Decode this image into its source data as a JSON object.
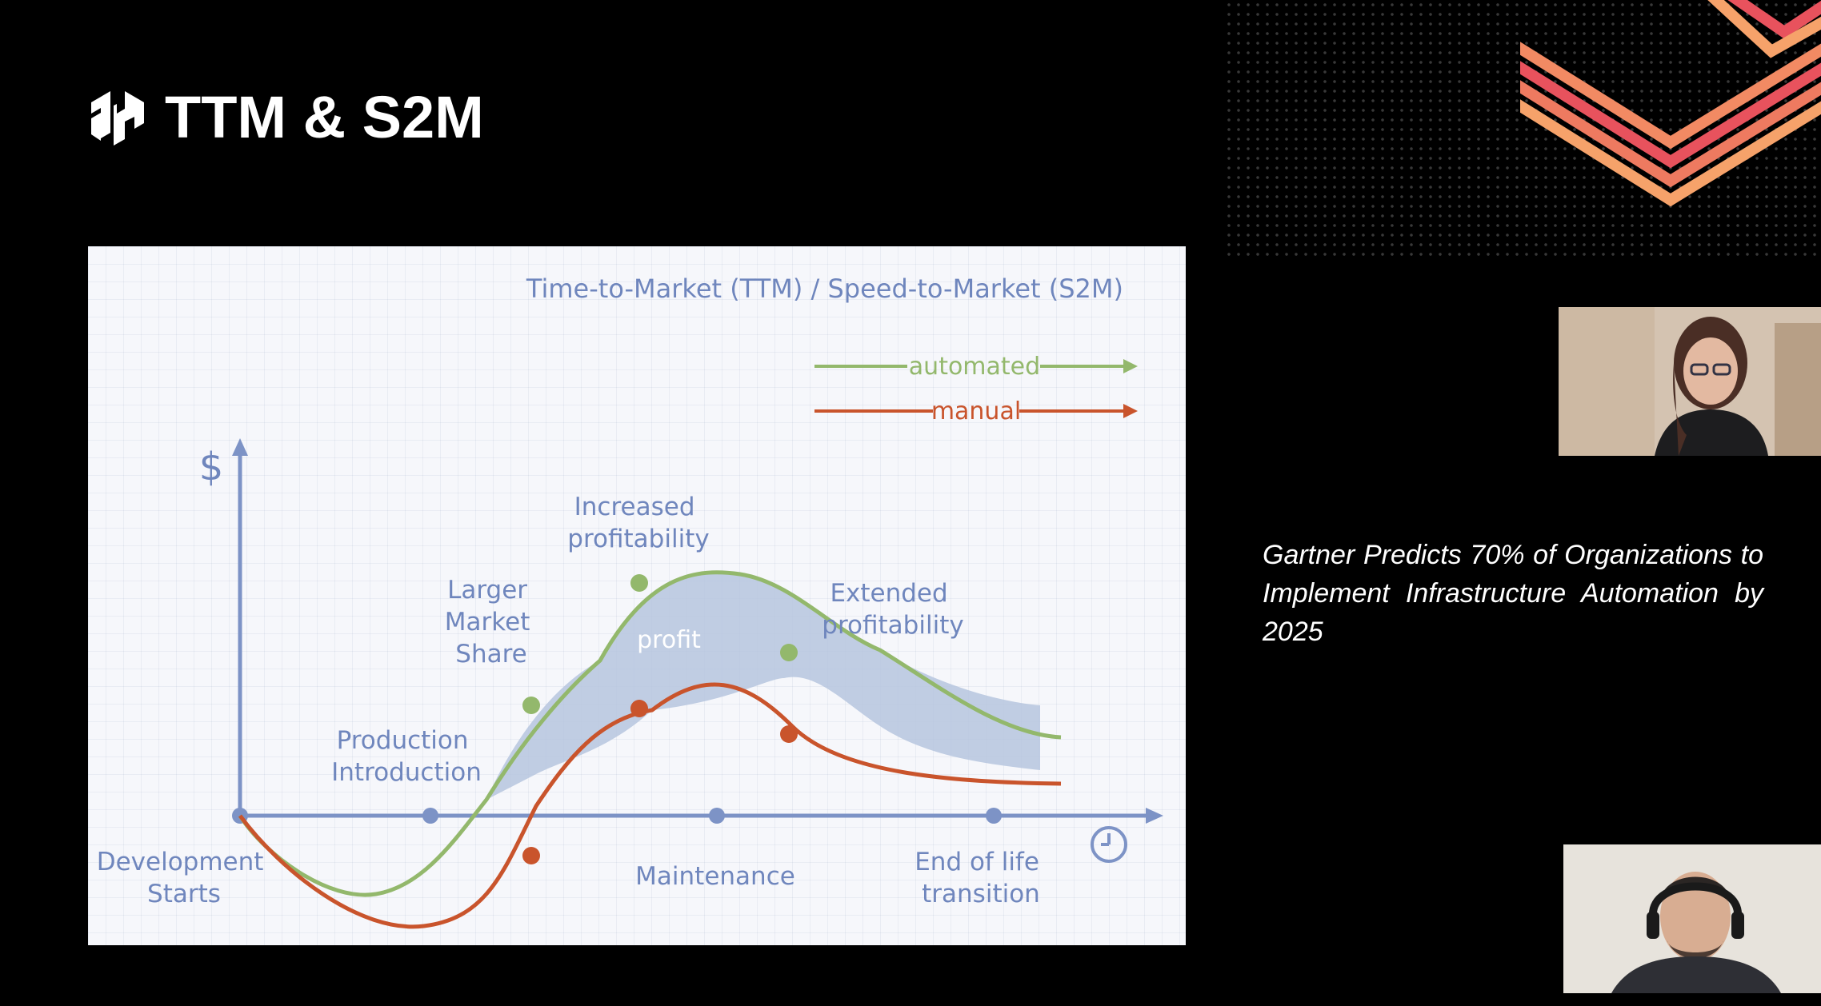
{
  "slide": {
    "title": "TTM & S2M",
    "quote": "Gartner Predicts 70% of Organizations to Implement Infrastructure Automation by 2025"
  },
  "icons": {
    "logo": "hashicorp-logo",
    "time_axis": "clock-icon"
  },
  "colors": {
    "background": "#000000",
    "automated": "#93b86c",
    "manual": "#c9542c",
    "axis": "#7d93c6",
    "text_blue": "#6f86bd",
    "profit_fill": "#b6c5de",
    "chevron_a": "#e8525d",
    "chevron_b": "#f6a26a"
  },
  "chart_data": {
    "type": "line",
    "title": "Time-to-Market (TTM) / Speed-to-Market (S2M)",
    "ylabel": "$",
    "xlabel": "",
    "legend": {
      "placement": "top-right"
    },
    "series": [
      {
        "name": "automated"
      },
      {
        "name": "manual"
      }
    ],
    "phases": [
      "Development Starts",
      "Production Introduction",
      "Maintenance",
      "End of life transition"
    ],
    "annotations": {
      "larger_share": "Larger Market Share",
      "increased": "Increased profitability",
      "extended": "Extended profitability",
      "profit": "profit"
    }
  },
  "webcams": [
    {
      "label": "participant-1"
    },
    {
      "label": "participant-2"
    }
  ]
}
